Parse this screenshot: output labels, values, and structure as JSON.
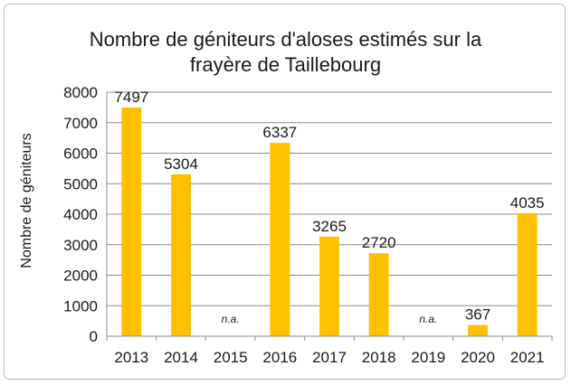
{
  "chart_data": {
    "type": "bar",
    "title_line1": "Nombre de géniteurs d'aloses estimés sur la",
    "title_line2": "frayère de Taillebourg",
    "xlabel": "",
    "ylabel": "Nombre de géniteurs",
    "ylim": [
      0,
      8000
    ],
    "yticks": [
      0,
      1000,
      2000,
      3000,
      4000,
      5000,
      6000,
      7000,
      8000
    ],
    "grid": true,
    "legend": "none",
    "bar_color": "#FFC000",
    "categories": [
      "2013",
      "2014",
      "2015",
      "2016",
      "2017",
      "2018",
      "2019",
      "2020",
      "2021"
    ],
    "values": [
      7497,
      5304,
      null,
      6337,
      3265,
      2720,
      null,
      367,
      4035
    ],
    "data_labels": [
      "7497",
      "5304",
      "n.a.",
      "6337",
      "3265",
      "2720",
      "n.a.",
      "367",
      "4035"
    ]
  }
}
